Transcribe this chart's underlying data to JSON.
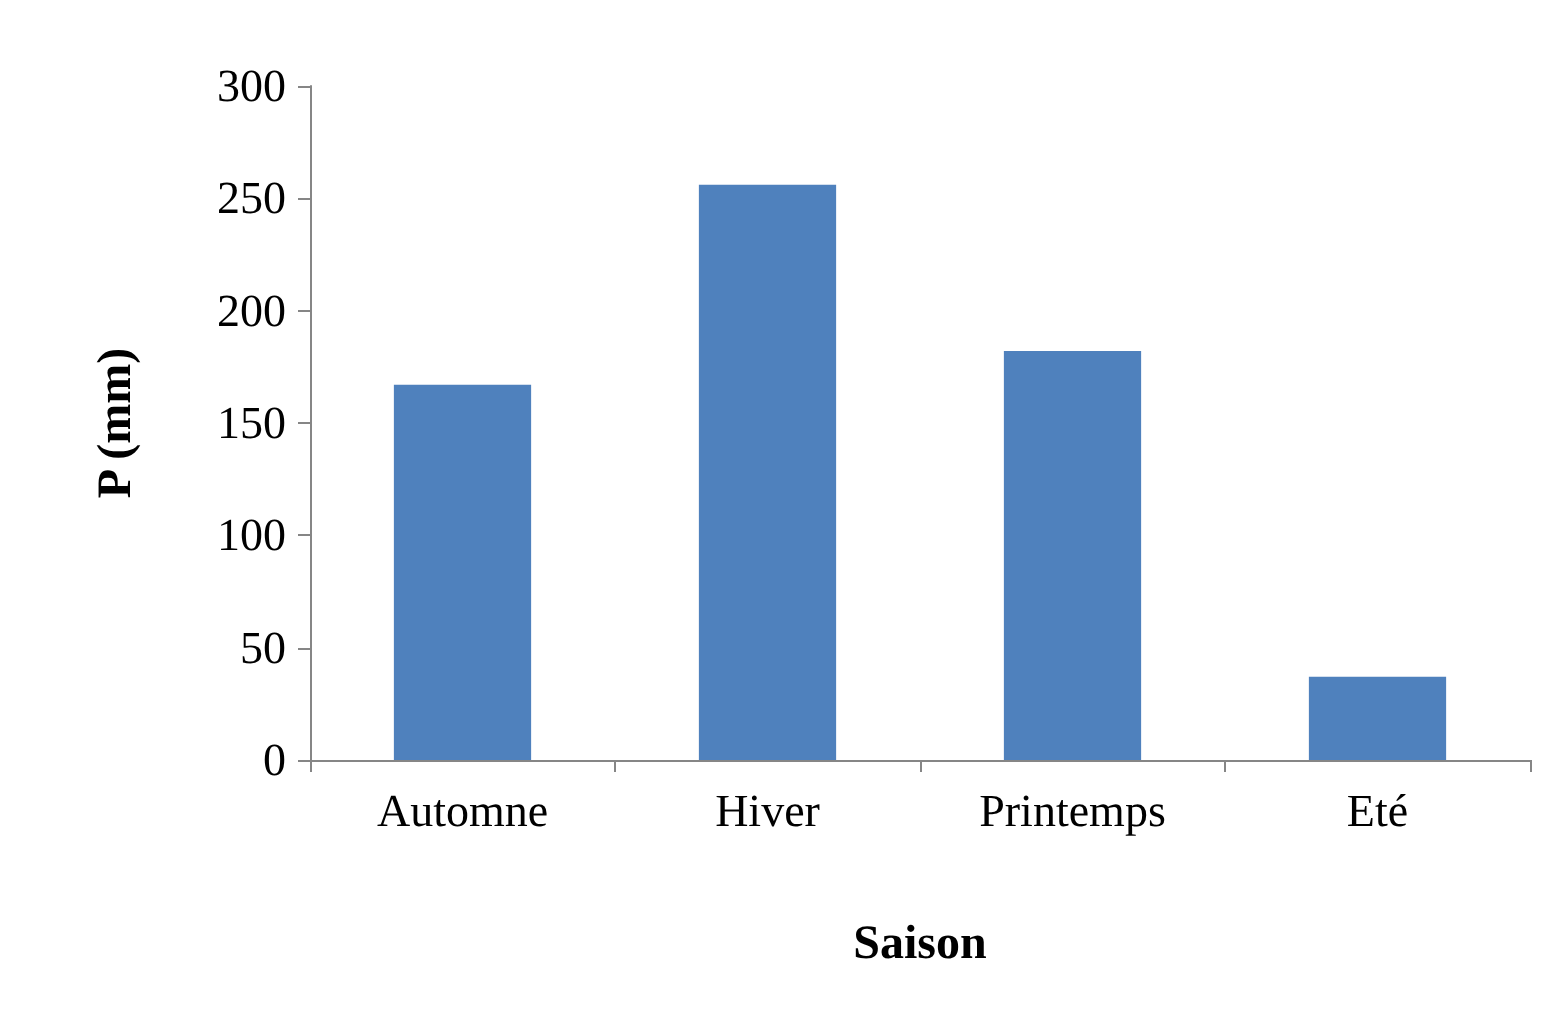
{
  "chart_data": {
    "type": "bar",
    "xlabel": "Saison",
    "ylabel": "P (mm)",
    "categories": [
      "Automne",
      "Hiver",
      "Printemps",
      "Eté"
    ],
    "values": [
      167,
      256,
      182,
      37
    ],
    "color": "#4f81bd",
    "ylim": [
      0,
      300
    ],
    "yticks": [
      0,
      50,
      100,
      150,
      200,
      250,
      300
    ],
    "grid": false
  }
}
